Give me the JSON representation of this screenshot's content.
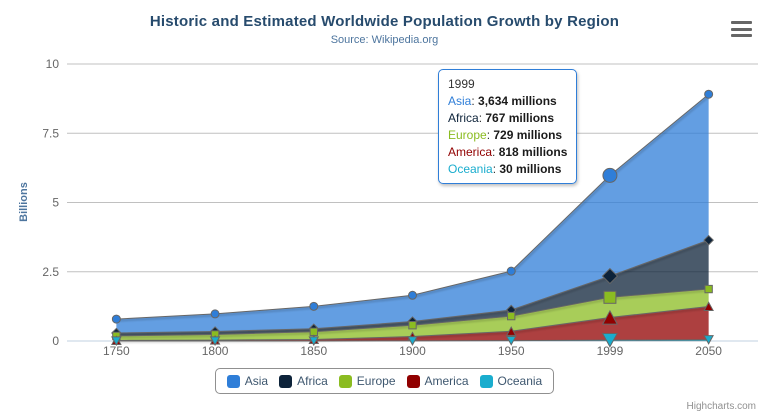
{
  "chart": {
    "title": "Historic and Estimated Worldwide Population Growth by Region",
    "subtitle": "Source: Wikipedia.org",
    "credits": "Highcharts.com"
  },
  "chart_data": {
    "type": "area",
    "stacking": "normal",
    "title": "Historic and Estimated Worldwide Population Growth by Region",
    "subtitle": "Source: Wikipedia.org",
    "xlabel": "",
    "ylabel": "Billions",
    "unit": "millions",
    "categories": [
      "1750",
      "1800",
      "1850",
      "1900",
      "1950",
      "1999",
      "2050"
    ],
    "ylim_billions": [
      0,
      10
    ],
    "yticks_billions": [
      0,
      2.5,
      5,
      7.5,
      10
    ],
    "grid": true,
    "legend_position": "bottom",
    "stack_order_bottom_to_top": [
      "Oceania",
      "America",
      "Europe",
      "Africa",
      "Asia"
    ],
    "series": [
      {
        "name": "Asia",
        "color": "#2f7ed8",
        "marker": "circle",
        "values": [
          502,
          635,
          809,
          947,
          1402,
          3634,
          5268
        ]
      },
      {
        "name": "Africa",
        "color": "#0d233a",
        "marker": "diamond",
        "values": [
          106,
          107,
          111,
          133,
          221,
          767,
          1766
        ]
      },
      {
        "name": "Europe",
        "color": "#8bbc21",
        "marker": "square",
        "values": [
          163,
          203,
          276,
          408,
          547,
          729,
          628
        ]
      },
      {
        "name": "America",
        "color": "#910000",
        "marker": "triangle",
        "values": [
          18,
          31,
          54,
          156,
          339,
          818,
          1201
        ]
      },
      {
        "name": "Oceania",
        "color": "#1aadce",
        "marker": "triangle-down",
        "values": [
          2,
          2,
          2,
          6,
          13,
          30,
          46
        ]
      }
    ]
  },
  "tooltip": {
    "header": "1999",
    "category_index": 5,
    "hover_series": "Asia",
    "border_color": "#2f7ed8",
    "rows": [
      {
        "series": "Asia",
        "color": "#2f7ed8",
        "value": "3,634 millions"
      },
      {
        "series": "Africa",
        "color": "#0d233a",
        "value": "767 millions"
      },
      {
        "series": "Europe",
        "color": "#8bbc21",
        "value": "729 millions"
      },
      {
        "series": "America",
        "color": "#910000",
        "value": "818 millions"
      },
      {
        "series": "Oceania",
        "color": "#1aadce",
        "value": "30 millions"
      }
    ]
  },
  "colors": {
    "title": "#274b6d",
    "subtitle": "#4d759e",
    "axis_label": "#666666",
    "grid_line": "#C0C0C0",
    "axis_line": "#C0D0E0",
    "legend_text": "#3E576F",
    "series_outline": "#666666"
  }
}
